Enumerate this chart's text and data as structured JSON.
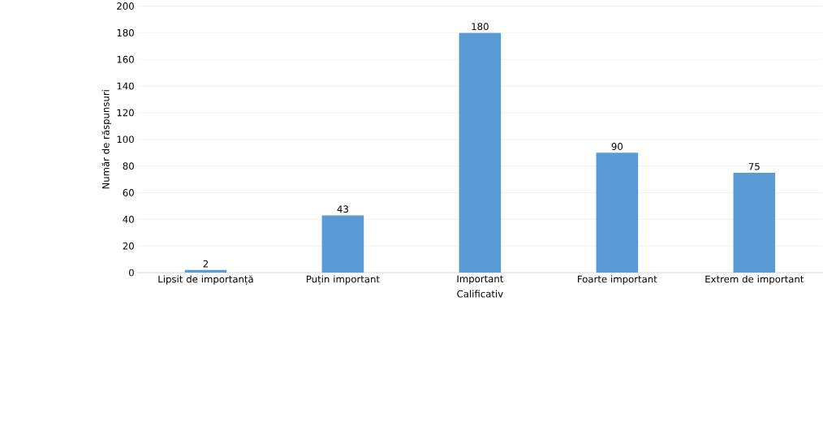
{
  "chart_data": {
    "type": "bar",
    "xlabel": "Calificativ",
    "ylabel": "Număr de răspunsuri",
    "categories": [
      "Lipsit de importanță",
      "Puțin important",
      "Important",
      "Foarte important",
      "Extrem de important"
    ],
    "values": [
      2,
      43,
      180,
      90,
      75
    ],
    "color": "#5b9bd5",
    "ylim": [
      0,
      200
    ],
    "yticks": [
      0,
      20,
      40,
      60,
      80,
      100,
      120,
      140,
      160,
      180,
      200
    ],
    "grid": "y",
    "data_labels": true
  }
}
